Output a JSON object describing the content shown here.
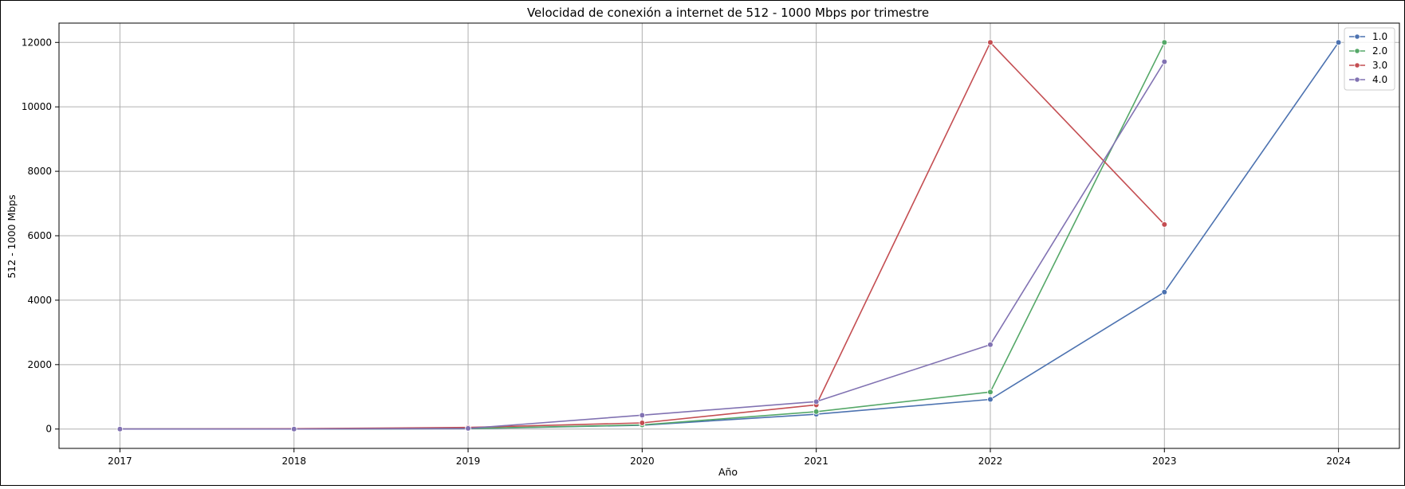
{
  "chart_data": {
    "type": "line",
    "title": "Velocidad de conexión a internet de 512 - 1000 Mbps por trimestre",
    "xlabel": "Año",
    "ylabel": "512 - 1000 Mbps",
    "x": [
      2017,
      2018,
      2019,
      2020,
      2021,
      2022,
      2023,
      2024
    ],
    "x_ticks": [
      "2017",
      "2018",
      "2019",
      "2020",
      "2021",
      "2022",
      "2023",
      "2024"
    ],
    "y_ticks": [
      "0",
      "2000",
      "4000",
      "6000",
      "8000",
      "10000",
      "12000"
    ],
    "xlim": [
      2016.65,
      2024.35
    ],
    "ylim": [
      -600,
      12600
    ],
    "grid": true,
    "legend_position": "top-right",
    "series": [
      {
        "name": "1.0",
        "color": "#4c72b0",
        "points": [
          [
            2017,
            0
          ],
          [
            2018,
            0
          ],
          [
            2019,
            10
          ],
          [
            2020,
            120
          ],
          [
            2021,
            460
          ],
          [
            2022,
            920
          ],
          [
            2023,
            4250
          ],
          [
            2024,
            12000
          ]
        ]
      },
      {
        "name": "2.0",
        "color": "#55a868",
        "points": [
          [
            2017,
            0
          ],
          [
            2018,
            0
          ],
          [
            2019,
            15
          ],
          [
            2020,
            130
          ],
          [
            2021,
            540
          ],
          [
            2022,
            1150
          ],
          [
            2023,
            12000
          ]
        ]
      },
      {
        "name": "3.0",
        "color": "#c44e52",
        "points": [
          [
            2017,
            0
          ],
          [
            2018,
            10
          ],
          [
            2019,
            50
          ],
          [
            2020,
            190
          ],
          [
            2021,
            750
          ],
          [
            2022,
            12000
          ],
          [
            2023,
            6350
          ]
        ]
      },
      {
        "name": "4.0",
        "color": "#8172b2",
        "points": [
          [
            2017,
            0
          ],
          [
            2018,
            0
          ],
          [
            2019,
            20
          ],
          [
            2020,
            430
          ],
          [
            2021,
            850
          ],
          [
            2022,
            2620
          ],
          [
            2023,
            11400
          ]
        ]
      }
    ]
  }
}
